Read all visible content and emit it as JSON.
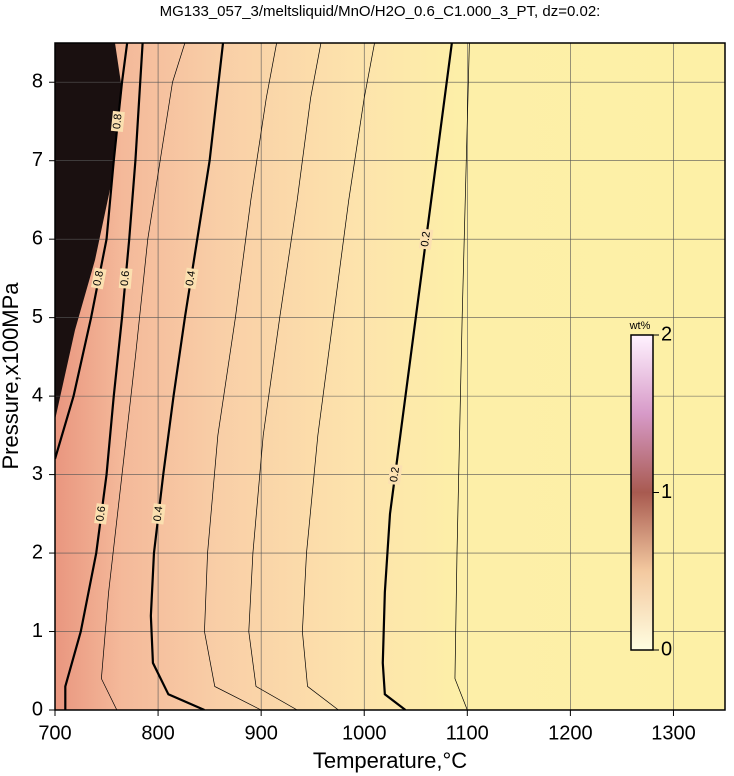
{
  "chart_data": {
    "type": "contour",
    "title": "MG133_057_3/meltsliquid/MnO/H2O_0.6_C1.000_3_PT, dz=0.02:",
    "x_label": "Temperature,°C",
    "y_label": "Pressure,x100MPa",
    "xlim": [
      700,
      1350
    ],
    "ylim": [
      0,
      8.5
    ],
    "xticks": [
      700,
      800,
      900,
      1000,
      1100,
      1200,
      1300
    ],
    "yticks": [
      0,
      1,
      2,
      3,
      4,
      5,
      6,
      7,
      8
    ],
    "grid": true,
    "line_color": "#000000",
    "contours": [
      {
        "level": 0.8,
        "labeled": true,
        "x": [
          700,
          718,
          735,
          750,
          757,
          765,
          770
        ],
        "y": [
          3.2,
          4,
          5,
          6,
          7,
          8,
          8.5
        ]
      },
      {
        "level": 0.6,
        "labeled": true,
        "x": [
          710,
          710,
          725,
          740,
          750,
          757,
          765,
          772,
          778,
          785
        ],
        "y": [
          0,
          0.3,
          1,
          2,
          3,
          4,
          5,
          6,
          7,
          8.5
        ]
      },
      {
        "level": 0.5,
        "labeled": false,
        "x": [
          760,
          745,
          752,
          765,
          778,
          790,
          802,
          814,
          826
        ],
        "y": [
          0,
          0.4,
          1.5,
          3,
          4.5,
          6,
          7,
          8,
          8.5
        ]
      },
      {
        "level": 0.4,
        "labeled": true,
        "x": [
          845,
          810,
          795,
          793,
          796,
          805,
          815,
          826,
          838,
          850,
          863
        ],
        "y": [
          0,
          0.2,
          0.6,
          1.2,
          2,
          3,
          4,
          5,
          6,
          7,
          8.5
        ]
      },
      {
        "level": 0.34,
        "labeled": false,
        "x": [
          900,
          855,
          845,
          848,
          858,
          875,
          890,
          905,
          915
        ],
        "y": [
          0,
          0.3,
          1,
          2,
          3.5,
          5,
          6.5,
          7.8,
          8.5
        ]
      },
      {
        "level": 0.3,
        "labeled": false,
        "x": [
          935,
          895,
          888,
          892,
          902,
          918,
          935,
          948,
          958
        ],
        "y": [
          0,
          0.3,
          1,
          2,
          3.5,
          5,
          6.5,
          7.8,
          8.5
        ]
      },
      {
        "level": 0.26,
        "labeled": false,
        "x": [
          975,
          945,
          940,
          944,
          955,
          970,
          985,
          1000,
          1010
        ],
        "y": [
          0,
          0.3,
          1,
          2,
          3.5,
          5,
          6.5,
          7.8,
          8.5
        ]
      },
      {
        "level": 0.2,
        "labeled": true,
        "x": [
          1040,
          1020,
          1018,
          1020,
          1025,
          1035,
          1045,
          1055,
          1065,
          1075,
          1085
        ],
        "y": [
          0,
          0.2,
          0.6,
          1.5,
          2.5,
          3.5,
          4.5,
          5.5,
          6.5,
          7.5,
          8.5
        ]
      },
      {
        "level": 0.16,
        "labeled": false,
        "x": [
          1100,
          1088,
          1090,
          1095,
          1102
        ],
        "y": [
          0,
          0.4,
          2,
          5,
          8.5
        ]
      }
    ],
    "colorbar": {
      "label": "wt%",
      "lim": [
        0,
        2
      ],
      "ticks": [
        0,
        1,
        2
      ]
    }
  }
}
